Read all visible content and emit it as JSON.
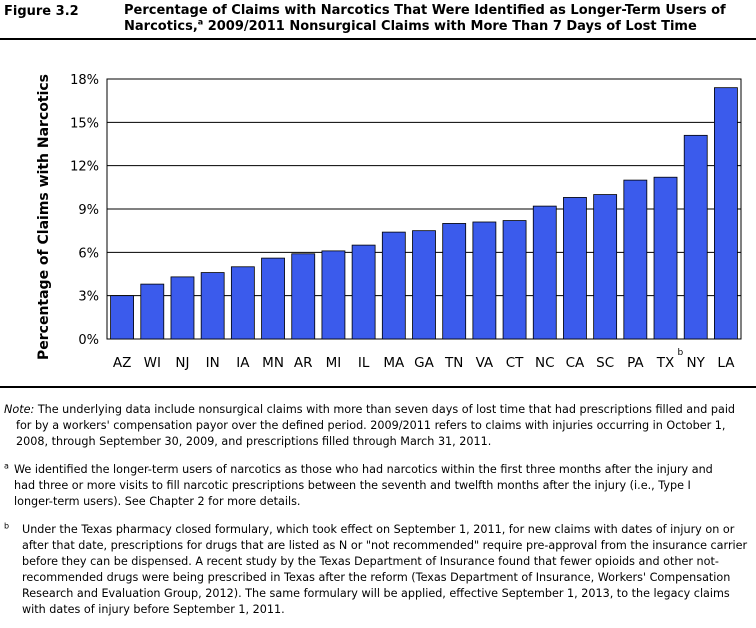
{
  "figure": {
    "label": "Figure 3.2",
    "title_line1": "Percentage of Claims with Narcotics That Were Identified as Longer-Term Users of",
    "title_line2_a": "Narcotics,",
    "title_line2_sup": "a",
    "title_line2_b": " 2009/2011 Nonsurgical Claims with More Than 7 Days of Lost Time"
  },
  "chart_data": {
    "type": "bar",
    "title": "",
    "ylabel": "Percentage of Claims with Narcotics",
    "xlabel": "",
    "ylim": [
      0,
      18
    ],
    "yticks": [
      "0%",
      "3%",
      "6%",
      "9%",
      "12%",
      "15%",
      "18%"
    ],
    "ytick_values": [
      0,
      3,
      6,
      9,
      12,
      15,
      18
    ],
    "categories": [
      "AZ",
      "WI",
      "NJ",
      "IN",
      "IA",
      "MN",
      "AR",
      "MI",
      "IL",
      "MA",
      "GA",
      "TN",
      "VA",
      "CT",
      "NC",
      "CA",
      "SC",
      "PA",
      "TX",
      "NY",
      "LA"
    ],
    "category_superscripts": {
      "TX": "b"
    },
    "values": [
      3.0,
      3.8,
      4.3,
      4.6,
      5.0,
      5.6,
      5.9,
      6.1,
      6.5,
      7.4,
      7.5,
      8.0,
      8.1,
      8.2,
      9.2,
      9.8,
      10.0,
      11.0,
      11.2,
      14.1,
      17.4
    ],
    "bar_color": "#3b5bec",
    "grid": "horizontal"
  },
  "notes": {
    "note_label": "Note:",
    "note_lines": [
      " The underlying data include nonsurgical claims with more than seven days of lost time that had prescriptions filled and paid",
      "for by a workers' compensation payor over the defined period. 2009/2011 refers to claims with injuries occurring in October 1,",
      "2008, through September 30, 2009, and prescriptions filled through March 31, 2011."
    ],
    "a_mark": "a",
    "a_lines": [
      "We identified the longer-term users of narcotics as those who had narcotics within the first three months after the injury and",
      "had three or more visits to fill narcotic prescriptions between the seventh and twelfth months after the injury (i.e., Type I",
      "longer-term users). See Chapter 2 for more details."
    ],
    "b_mark": "b",
    "b_lines": [
      "Under the Texas pharmacy closed formulary, which took effect on September 1, 2011, for new claims with dates of injury on or",
      "after that date, prescriptions for drugs that are listed as N or \"not recommended\" require pre-approval from the insurance carrier",
      "before they can be dispensed. A recent study by the Texas Department of Insurance found that fewer opioids and other not-",
      "recommended drugs were being prescribed in Texas after the reform (Texas Department of Insurance, Workers' Compensation",
      "Research and Evaluation Group, 2012). The same formulary will be applied, effective September 1, 2013, to the legacy claims",
      "with dates of injury before September 1, 2011."
    ]
  }
}
